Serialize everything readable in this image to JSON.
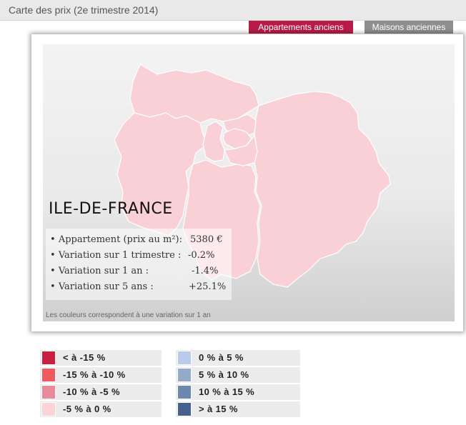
{
  "header": {
    "title": "Carte des prix (2e trimestre 2014)"
  },
  "tabs": [
    {
      "label": "Appartements anciens",
      "active": true,
      "color": "#b81c46"
    },
    {
      "label": "Maisons anciennes",
      "active": false,
      "color": "#8f8f8f"
    }
  ],
  "map": {
    "region": "ILE-DE-FRANCE",
    "fill_color": "#f9d0d6",
    "stats": [
      {
        "label": "Appartement (prix au m²):",
        "value": "5380 €"
      },
      {
        "label": "Variation sur 1 trimestre :",
        "value": "-0.2%"
      },
      {
        "label": "Variation sur 1 an :",
        "value": "-1.4%"
      },
      {
        "label": "Variation sur 5 ans :",
        "value": "+25.1%"
      }
    ],
    "note": "Les couleurs correspondent à une variation sur 1 an"
  },
  "legend": [
    {
      "label": "< à -15 %",
      "color": "#c8203f"
    },
    {
      "label": "-15 % à -10  %",
      "color": "#f05a5f"
    },
    {
      "label": "-10 % à -5 %",
      "color": "#e88a9a"
    },
    {
      "label": "-5 % à 0 %",
      "color": "#fcd4d8"
    },
    {
      "label": "0 % à 5 %",
      "color": "#b8cbea"
    },
    {
      "label": "5 % à 10 %",
      "color": "#94aacb"
    },
    {
      "label": "10 % à 15 %",
      "color": "#6d87ad"
    },
    {
      "label": "> à 15 %",
      "color": "#47618f"
    }
  ]
}
